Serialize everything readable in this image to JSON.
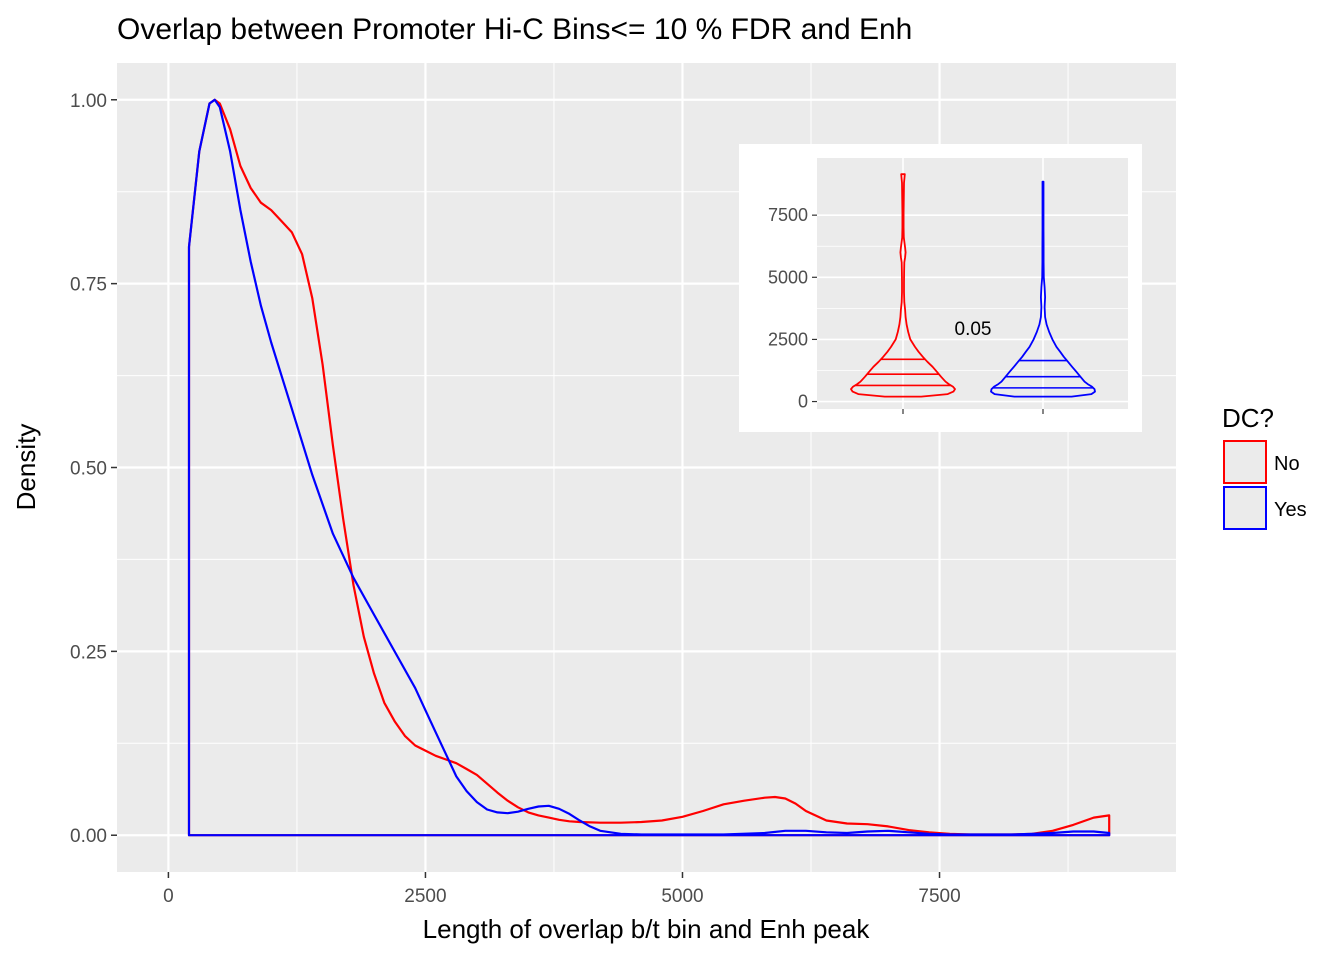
{
  "chart_data": [
    {
      "type": "line",
      "title": "Overlap between Promoter Hi-C Bins<= 10 % FDR and Enh",
      "xlabel": "Length of overlap b/t bin and Enh peak",
      "ylabel": "Density",
      "xlim": [
        -500,
        9800
      ],
      "ylim": [
        -0.05,
        1.05
      ],
      "x_ticks": [
        0,
        2500,
        5000,
        7500
      ],
      "x_tick_labels": [
        "0",
        "2500",
        "5000",
        "7500"
      ],
      "y_ticks": [
        0,
        0.25,
        0.5,
        0.75,
        1.0
      ],
      "y_tick_labels": [
        "0.00",
        "0.25",
        "0.50",
        "0.75",
        "1.00"
      ],
      "grid": true,
      "legend": {
        "title": "DC?",
        "position": "right",
        "entries": [
          {
            "label": "No",
            "color": "#ff0000"
          },
          {
            "label": "Yes",
            "color": "#0000ff"
          }
        ]
      },
      "series": [
        {
          "name": "No",
          "color": "#ff0000",
          "x": [
            200,
            300,
            400,
            450,
            500,
            600,
            700,
            800,
            900,
            1000,
            1100,
            1200,
            1300,
            1400,
            1500,
            1600,
            1700,
            1800,
            1900,
            2000,
            2100,
            2200,
            2300,
            2400,
            2500,
            2600,
            2700,
            2800,
            2900,
            3000,
            3100,
            3200,
            3300,
            3400,
            3500,
            3600,
            3700,
            3800,
            3900,
            4000,
            4200,
            4400,
            4600,
            4800,
            5000,
            5200,
            5400,
            5600,
            5800,
            5900,
            6000,
            6100,
            6200,
            6400,
            6600,
            6800,
            7000,
            7200,
            7400,
            7600,
            7800,
            8000,
            8200,
            8400,
            8600,
            8800,
            9000,
            9150,
            9150
          ],
          "y": [
            0.8,
            0.93,
            0.995,
            1.0,
            0.995,
            0.96,
            0.91,
            0.88,
            0.86,
            0.85,
            0.835,
            0.82,
            0.79,
            0.73,
            0.64,
            0.53,
            0.43,
            0.34,
            0.27,
            0.22,
            0.18,
            0.155,
            0.135,
            0.122,
            0.115,
            0.108,
            0.103,
            0.098,
            0.09,
            0.082,
            0.07,
            0.058,
            0.047,
            0.038,
            0.031,
            0.027,
            0.024,
            0.021,
            0.019,
            0.018,
            0.017,
            0.017,
            0.018,
            0.02,
            0.025,
            0.033,
            0.042,
            0.047,
            0.051,
            0.052,
            0.05,
            0.043,
            0.033,
            0.02,
            0.016,
            0.015,
            0.012,
            0.007,
            0.004,
            0.002,
            0.001,
            0.001,
            0.001,
            0.002,
            0.006,
            0.014,
            0.024,
            0.027,
            0.0
          ]
        },
        {
          "name": "Yes",
          "color": "#0000ff",
          "x": [
            200,
            300,
            400,
            450,
            500,
            600,
            700,
            800,
            900,
            1000,
            1200,
            1400,
            1600,
            1800,
            2000,
            2200,
            2400,
            2500,
            2600,
            2700,
            2800,
            2900,
            3000,
            3100,
            3200,
            3300,
            3400,
            3500,
            3600,
            3700,
            3800,
            3900,
            4000,
            4100,
            4200,
            4400,
            4600,
            4800,
            5000,
            5400,
            5800,
            6000,
            6200,
            6400,
            6600,
            6800,
            7000,
            7200,
            7400,
            7600,
            7800,
            8000,
            8200,
            8400,
            8600,
            8800,
            9000,
            9150
          ],
          "y": [
            0.8,
            0.93,
            0.995,
            1.0,
            0.99,
            0.93,
            0.85,
            0.78,
            0.72,
            0.67,
            0.58,
            0.49,
            0.41,
            0.35,
            0.3,
            0.25,
            0.2,
            0.17,
            0.14,
            0.11,
            0.08,
            0.06,
            0.045,
            0.035,
            0.031,
            0.03,
            0.032,
            0.036,
            0.039,
            0.04,
            0.036,
            0.029,
            0.02,
            0.012,
            0.006,
            0.002,
            0.001,
            0.001,
            0.001,
            0.001,
            0.003,
            0.006,
            0.006,
            0.004,
            0.003,
            0.005,
            0.006,
            0.004,
            0.002,
            0.001,
            0.001,
            0.001,
            0.001,
            0.002,
            0.003,
            0.005,
            0.005,
            0.003
          ]
        }
      ]
    },
    {
      "type": "violin",
      "annotation": "0.05",
      "ylim": [
        -300,
        9800
      ],
      "y_ticks": [
        0,
        2500,
        5000,
        7500
      ],
      "y_tick_labels": [
        "0",
        "2500",
        "5000",
        "7500"
      ],
      "quantiles": [
        0.25,
        0.5,
        0.75
      ],
      "grid": true,
      "series": [
        {
          "name": "No",
          "color": "#ff0000",
          "profile_y": [
            200,
            300,
            400,
            500,
            600,
            700,
            800,
            1000,
            1200,
            1400,
            1600,
            1800,
            2000,
            2200,
            2500,
            2800,
            3100,
            3400,
            3700,
            4000,
            4400,
            4800,
            5200,
            5600,
            5800,
            6000,
            6200,
            6600,
            7000,
            7600,
            8200,
            8800,
            9150
          ],
          "profile_width": [
            0.35,
            0.86,
            0.97,
            1.0,
            0.96,
            0.88,
            0.82,
            0.73,
            0.65,
            0.57,
            0.47,
            0.38,
            0.3,
            0.23,
            0.14,
            0.1,
            0.07,
            0.05,
            0.04,
            0.025,
            0.02,
            0.02,
            0.022,
            0.025,
            0.04,
            0.05,
            0.04,
            0.015,
            0.012,
            0.012,
            0.015,
            0.02,
            0.035
          ],
          "q25": 650,
          "q50": 1100,
          "q75": 1700
        },
        {
          "name": "Yes",
          "color": "#0000ff",
          "profile_y": [
            200,
            300,
            400,
            500,
            600,
            700,
            800,
            1000,
            1200,
            1400,
            1600,
            1800,
            2000,
            2200,
            2500,
            2800,
            3100,
            3400,
            3800,
            4200,
            4600,
            5000,
            5600,
            6200,
            7000,
            7800,
            8600,
            8850
          ],
          "profile_width": [
            0.55,
            0.93,
            1.0,
            0.99,
            0.94,
            0.86,
            0.8,
            0.72,
            0.64,
            0.56,
            0.48,
            0.4,
            0.33,
            0.26,
            0.18,
            0.12,
            0.07,
            0.04,
            0.03,
            0.04,
            0.03,
            0.015,
            0.012,
            0.012,
            0.01,
            0.01,
            0.01,
            0.01
          ],
          "q25": 550,
          "q50": 1000,
          "q75": 1650
        }
      ]
    }
  ]
}
